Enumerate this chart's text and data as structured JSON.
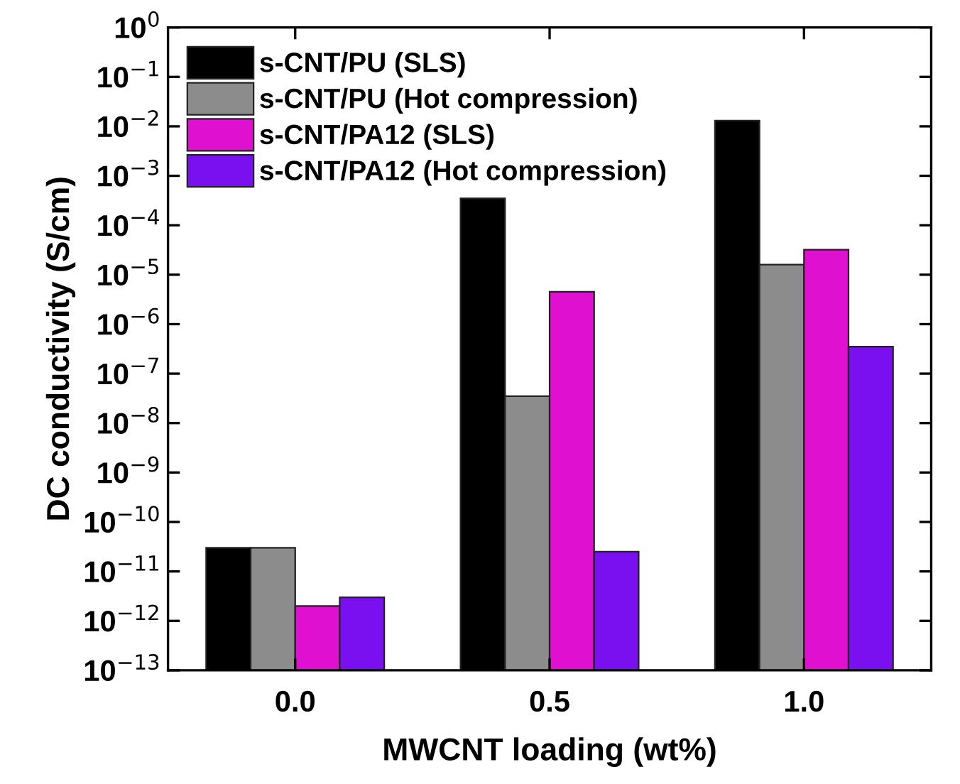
{
  "chart_data": {
    "type": "bar",
    "xlabel": "MWCNT loading (wt%)",
    "ylabel": "DC conductivity (S/cm)",
    "categories": [
      "0.0",
      "0.5",
      "1.0"
    ],
    "series": [
      {
        "name": "s-CNT/PU (SLS)",
        "color": "#000000",
        "values": [
          3e-11,
          0.00035,
          0.013
        ]
      },
      {
        "name": "s-CNT/PU (Hot compression)",
        "color": "#8c8c8c",
        "values": [
          3e-11,
          3.5e-08,
          1.6e-05
        ]
      },
      {
        "name": "s-CNT/PA12 (SLS)",
        "color": "#e010d0",
        "values": [
          2e-12,
          4.5e-06,
          3.2e-05
        ]
      },
      {
        "name": "s-CNT/PA12 (Hot compression)",
        "color": "#7a10f0",
        "values": [
          3e-12,
          2.5e-11,
          3.5e-07
        ]
      }
    ],
    "log": true,
    "ylim": [
      1e-13,
      1
    ],
    "yticks": [
      {
        "value": 1e-13,
        "label": "10$^{−13}$"
      },
      {
        "value": 1e-12,
        "label": "10$^{−12}$"
      },
      {
        "value": 1e-11,
        "label": "10$^{−11}$"
      },
      {
        "value": 1e-10,
        "label": "10$^{−10}$"
      },
      {
        "value": 1e-09,
        "label": "10$^{−9}$"
      },
      {
        "value": 1e-08,
        "label": "10$^{−8}$"
      },
      {
        "value": 1e-07,
        "label": "10$^{−7}$"
      },
      {
        "value": 1e-06,
        "label": "10$^{−6}$"
      },
      {
        "value": 1e-05,
        "label": "10$^{−5}$"
      },
      {
        "value": 0.0001,
        "label": "10$^{−4}$"
      },
      {
        "value": 0.001,
        "label": "10$^{−3}$"
      },
      {
        "value": 0.01,
        "label": "10$^{−2}$"
      },
      {
        "value": 0.1,
        "label": "10$^{−1}$"
      },
      {
        "value": 1,
        "label": "10$^{0}$"
      }
    ],
    "legend": "top left",
    "grid": false
  }
}
